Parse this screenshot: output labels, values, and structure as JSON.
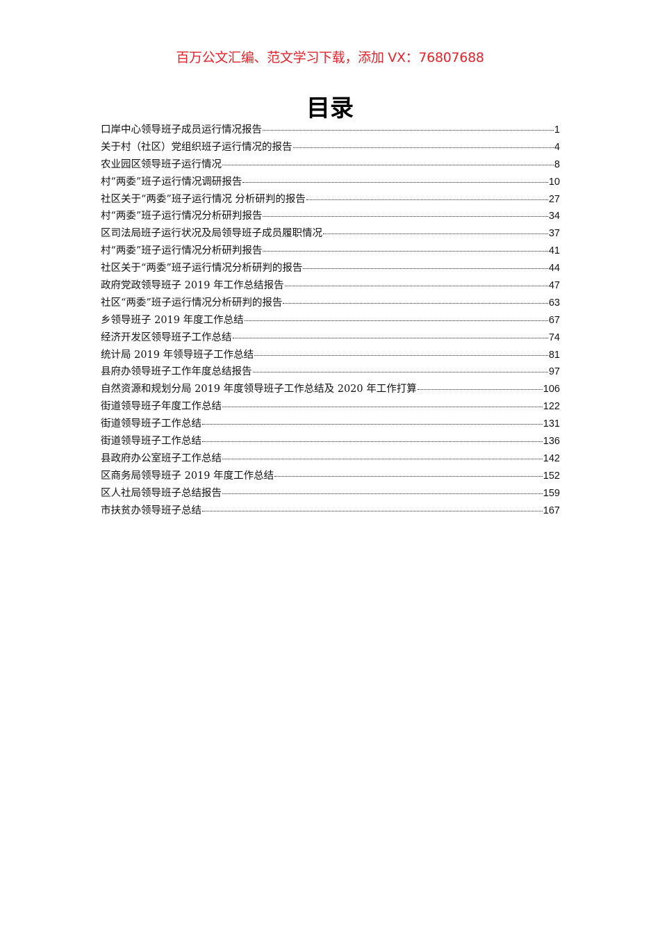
{
  "banner": "百万公文汇编、范文学习下载，添加 VX：76807688",
  "title": "目录",
  "toc": [
    {
      "title": "口岸中心领导班子成员运行情况报告",
      "page": "1"
    },
    {
      "title": "关于村（社区）党组织班子运行情况的报告",
      "page": "4"
    },
    {
      "title": "农业园区领导班子运行情况",
      "page": "8"
    },
    {
      "title": "村“两委”班子运行情况调研报告",
      "page": "10"
    },
    {
      "title": "社区关于“两委”班子运行情况  分析研判的报告",
      "page": "27"
    },
    {
      "title": "村“两委”班子运行情况分析研判报告",
      "page": "34"
    },
    {
      "title": "区司法局班子运行状况及局领导班子成员履职情况",
      "page": "37"
    },
    {
      "title": "村“两委”班子运行情况分析研判报告",
      "page": "41"
    },
    {
      "title": "社区关于“两委”班子运行情况分析研判的报告",
      "page": "44"
    },
    {
      "title": "政府党政领导班子 2019 年工作总结报告",
      "page": "47"
    },
    {
      "title": "社区“两委”班子运行情况分析研判的报告",
      "page": "63"
    },
    {
      "title": "乡领导班子 2019 年度工作总结",
      "page": "67"
    },
    {
      "title": "经济开发区领导班子工作总结",
      "page": "74"
    },
    {
      "title": "统计局 2019 年领导班子工作总结",
      "page": "81"
    },
    {
      "title": "县府办领导班子工作年度总结报告",
      "page": "97"
    },
    {
      "title": "自然资源和规划分局 2019 年度领导班子工作总结及 2020 年工作打算",
      "page": "106"
    },
    {
      "title": "街道领导班子年度工作总结",
      "page": "122"
    },
    {
      "title": "街道领导班子工作总结",
      "page": "131"
    },
    {
      "title": "街道领导班子工作总结",
      "page": "136"
    },
    {
      "title": "县政府办公室班子工作总结",
      "page": "142"
    },
    {
      "title": "区商务局领导班子 2019 年度工作总结",
      "page": "152"
    },
    {
      "title": "区人社局领导班子总结报告",
      "page": "159"
    },
    {
      "title": "市扶贫办领导班子总结",
      "page": "167"
    }
  ]
}
